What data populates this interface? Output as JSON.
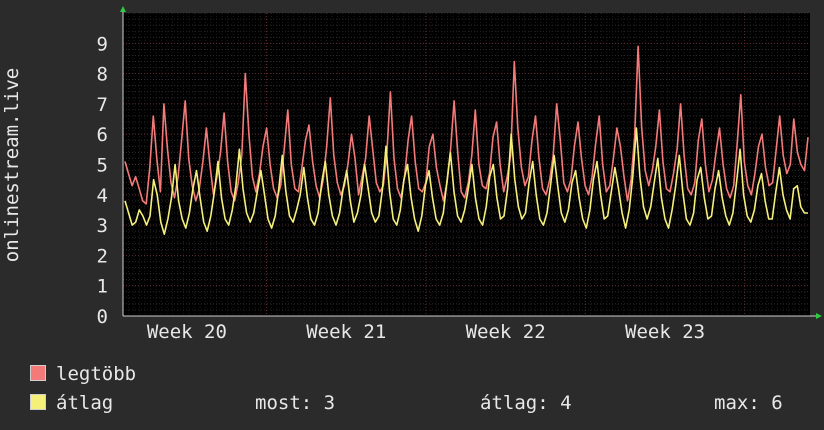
{
  "chart_data": {
    "type": "line",
    "ylabel": "onlinestream.live",
    "ylim": [
      0,
      10
    ],
    "yticks": [
      "0",
      "1",
      "2",
      "3",
      "4",
      "5",
      "6",
      "7",
      "8",
      "9"
    ],
    "xlim": [
      0,
      1
    ],
    "xticks": [
      {
        "label": "Week 20",
        "pos": 0.093
      },
      {
        "label": "Week 21",
        "pos": 0.325
      },
      {
        "label": "Week 22",
        "pos": 0.557
      },
      {
        "label": "Week 23",
        "pos": 0.789
      }
    ],
    "grid": true,
    "legend_placement": "bottom-left",
    "series": [
      {
        "name": "legtöbb",
        "color": "#f47a7a",
        "values": [
          5.1,
          4.7,
          4.3,
          4.6,
          4.2,
          3.8,
          3.7,
          4.9,
          6.6,
          5.2,
          4.1,
          7.0,
          5.5,
          4.4,
          3.9,
          4.6,
          5.8,
          7.1,
          5.2,
          4.3,
          3.8,
          4.2,
          5.1,
          6.2,
          5.0,
          4.0,
          4.6,
          5.4,
          6.7,
          5.1,
          4.1,
          3.8,
          4.4,
          5.3,
          8.0,
          6.0,
          4.6,
          4.1,
          4.7,
          5.6,
          6.2,
          5.0,
          4.2,
          3.9,
          4.3,
          5.5,
          6.8,
          5.0,
          4.2,
          4.1,
          4.9,
          5.8,
          6.3,
          5.1,
          4.3,
          3.9,
          4.5,
          5.6,
          7.2,
          5.3,
          4.4,
          4.0,
          4.3,
          5.0,
          6.0,
          5.2,
          4.0,
          4.6,
          5.2,
          6.6,
          5.5,
          4.4,
          4.1,
          4.3,
          5.4,
          7.4,
          5.2,
          4.2,
          3.9,
          4.6,
          5.8,
          6.6,
          5.1,
          4.2,
          4.1,
          4.4,
          5.6,
          6.0,
          4.9,
          4.3,
          3.8,
          4.4,
          5.5,
          7.1,
          5.4,
          4.1,
          3.9,
          4.4,
          5.3,
          6.8,
          5.0,
          4.3,
          4.2,
          4.7,
          5.9,
          6.4,
          5.0,
          4.1,
          4.6,
          5.3,
          8.4,
          6.2,
          4.9,
          4.3,
          4.6,
          5.8,
          6.6,
          5.2,
          4.2,
          4.0,
          4.5,
          5.3,
          7.0,
          5.8,
          4.4,
          4.1,
          4.5,
          5.6,
          6.4,
          5.2,
          4.3,
          4.0,
          4.6,
          5.7,
          6.6,
          5.0,
          4.1,
          4.3,
          5.2,
          6.2,
          5.6,
          4.6,
          3.8,
          4.5,
          5.9,
          8.9,
          6.2,
          4.8,
          4.3,
          4.8,
          5.6,
          6.8,
          5.1,
          4.2,
          4.1,
          4.7,
          5.5,
          7.0,
          5.3,
          4.2,
          4.0,
          4.4,
          5.8,
          6.5,
          5.0,
          4.1,
          4.5,
          5.4,
          6.2,
          5.0,
          4.2,
          3.9,
          4.3,
          5.7,
          7.3,
          5.1,
          4.3,
          4.0,
          4.7,
          5.6,
          6.0,
          4.9,
          4.3,
          4.4,
          5.5,
          6.6,
          5.3,
          4.7,
          5.0,
          6.5,
          5.4,
          5.0,
          4.8,
          5.9
        ]
      },
      {
        "name": "átlag",
        "color": "#f5f07a",
        "values": [
          3.8,
          3.4,
          3.0,
          3.1,
          3.5,
          3.3,
          3.0,
          3.3,
          4.5,
          4.0,
          3.1,
          2.7,
          3.2,
          3.9,
          5.0,
          3.8,
          3.2,
          2.9,
          3.4,
          4.2,
          4.8,
          3.9,
          3.1,
          2.8,
          3.3,
          4.1,
          5.1,
          3.9,
          3.2,
          3.0,
          3.5,
          4.3,
          5.5,
          4.2,
          3.4,
          3.1,
          3.4,
          4.1,
          4.8,
          4.0,
          3.2,
          2.9,
          3.3,
          4.2,
          5.3,
          4.1,
          3.3,
          3.1,
          3.5,
          4.0,
          4.9,
          3.9,
          3.2,
          3.0,
          3.4,
          4.4,
          5.1,
          4.0,
          3.3,
          3.0,
          3.4,
          4.2,
          4.8,
          3.8,
          3.1,
          3.4,
          4.0,
          5.0,
          4.2,
          3.4,
          3.1,
          3.3,
          4.2,
          5.6,
          4.1,
          3.2,
          3.0,
          3.5,
          4.5,
          5.0,
          3.9,
          3.2,
          2.8,
          3.3,
          4.3,
          4.8,
          3.9,
          3.2,
          3.0,
          3.4,
          4.4,
          5.4,
          4.1,
          3.3,
          3.1,
          3.5,
          4.2,
          5.0,
          3.9,
          3.2,
          3.0,
          3.6,
          4.6,
          5.0,
          3.9,
          3.2,
          3.3,
          4.2,
          6.0,
          4.5,
          3.6,
          3.2,
          3.4,
          4.4,
          5.1,
          4.0,
          3.2,
          3.0,
          3.4,
          4.3,
          5.3,
          4.3,
          3.4,
          3.1,
          3.5,
          4.4,
          4.8,
          3.9,
          3.2,
          2.9,
          3.5,
          4.5,
          5.1,
          4.0,
          3.2,
          3.3,
          4.1,
          4.9,
          4.2,
          3.4,
          2.9,
          3.5,
          4.6,
          6.2,
          4.6,
          3.6,
          3.2,
          3.6,
          4.4,
          5.2,
          3.9,
          3.2,
          2.9,
          3.5,
          4.3,
          5.3,
          4.1,
          3.2,
          3.0,
          3.4,
          4.5,
          4.9,
          3.9,
          3.2,
          3.3,
          4.2,
          4.8,
          3.9,
          3.3,
          3.0,
          3.4,
          4.4,
          5.5,
          4.0,
          3.3,
          3.1,
          3.5,
          4.3,
          4.7,
          3.8,
          3.2,
          3.2,
          4.1,
          4.9,
          4.0,
          3.5,
          3.2,
          4.2,
          4.3,
          3.6,
          3.4,
          3.4
        ]
      }
    ]
  },
  "stats": {
    "now": "most: 3",
    "avg": "átlag: 4",
    "max": "max: 6"
  }
}
